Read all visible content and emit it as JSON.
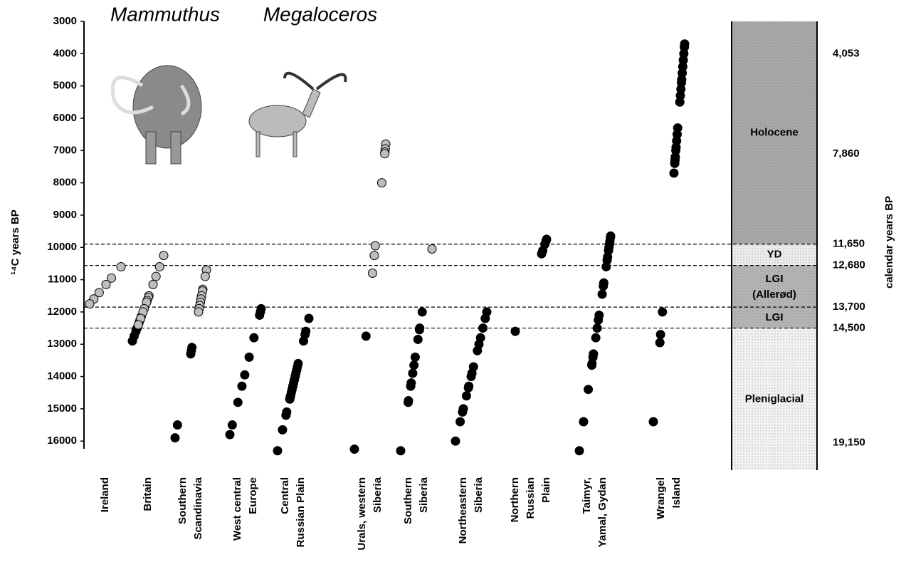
{
  "chart_data": {
    "type": "scatter",
    "y_label": "¹⁴C years BP",
    "y2_label": "calendar years BP",
    "ylim": [
      3000,
      16900
    ],
    "yticks": [
      3000,
      4000,
      5000,
      6000,
      7000,
      8000,
      9000,
      10000,
      11000,
      12000,
      13000,
      14000,
      15000,
      16000
    ],
    "y2lim": [
      3000,
      16900
    ],
    "y2ticks": [
      {
        "value": 4000,
        "label": "4,053"
      },
      {
        "value": 7100,
        "label": "7,860"
      },
      {
        "value": 9900,
        "label": "11,650"
      },
      {
        "value": 10560,
        "label": "12,680"
      },
      {
        "value": 11850,
        "label": "13,700"
      },
      {
        "value": 12500,
        "label": "14,500"
      },
      {
        "value": 16050,
        "label": "19,150"
      }
    ],
    "zone_bounds": [
      9900,
      10560,
      11850,
      12500
    ],
    "zones": [
      {
        "name": "Holocene",
        "color": "#a8a8a8"
      },
      {
        "name": "YD",
        "color": "#ececec"
      },
      {
        "name": "LGI (Allerød)",
        "color": "#b4b4b4"
      },
      {
        "name": "LGI",
        "color": "#b4b4b4"
      },
      {
        "name": "Pleniglacial",
        "color": "#f2f2f2"
      }
    ],
    "categories": [
      [
        "Ireland"
      ],
      [
        "Britain"
      ],
      [
        "Southern",
        "Scandinavia"
      ],
      [
        "West central",
        "Europe"
      ],
      [
        "Central",
        "Russian Plain"
      ],
      [
        "Urals, western",
        "Siberia"
      ],
      [
        "Southern",
        "Siberia"
      ],
      [
        "Northeastern",
        "Siberia"
      ],
      [
        "Northern",
        "Russian",
        "Plain"
      ],
      [
        "Taimyr,",
        "Yamal, Gydan"
      ],
      [
        "Wrangel",
        "Island"
      ]
    ],
    "series": [
      {
        "name": "Mammuthus",
        "color": "#000000",
        "values": [
          [],
          [
            12150,
            12250,
            12350,
            12500,
            12600,
            12750,
            12900
          ],
          [
            13100,
            13200,
            13300,
            15500,
            15900
          ],
          [
            11900,
            12000,
            12100,
            12800,
            13400,
            13950,
            14300,
            14800,
            15500,
            15800
          ],
          [
            12200,
            12600,
            12700,
            12900,
            13600,
            13700,
            13800,
            13900,
            14000,
            14100,
            14200,
            14300,
            14400,
            14500,
            14600,
            14650,
            14700,
            15100,
            15200,
            15650,
            16300
          ],
          [
            12750,
            16250
          ],
          [
            12000,
            12500,
            12550,
            12850,
            13400,
            13650,
            13900,
            14200,
            14300,
            14750,
            14800,
            16300
          ],
          [
            12000,
            12200,
            12500,
            12800,
            13000,
            13200,
            13700,
            13900,
            14000,
            14300,
            14350,
            14600,
            15000,
            15100,
            15400,
            16000
          ],
          [
            9750,
            9800,
            9900,
            10100,
            10200,
            12600
          ],
          [
            9650,
            9700,
            9800,
            9900,
            10000,
            10100,
            10300,
            10400,
            10600,
            11100,
            11200,
            11450,
            12100,
            12250,
            12500,
            12800,
            13300,
            13400,
            13600,
            13650,
            14400,
            15400,
            16300
          ],
          [
            3700,
            3800,
            4000,
            4200,
            4400,
            4600,
            4800,
            4900,
            5100,
            5300,
            5500,
            6300,
            6500,
            6700,
            6900,
            7000,
            7200,
            7300,
            7400,
            7700,
            12000,
            12700,
            12950,
            15400
          ]
        ]
      },
      {
        "name": "Megaloceros",
        "color": "#bdbdbd",
        "values": [
          [
            10600,
            10950,
            11150,
            11400,
            11600,
            11750
          ],
          [
            10250,
            10600,
            10900,
            11150,
            11500,
            11550,
            11650,
            11700,
            11900,
            12000,
            12200,
            12400
          ],
          [
            10700,
            10900,
            11300,
            11350,
            11500,
            11600,
            11700,
            11800,
            11900,
            12000
          ],
          [],
          [],
          [
            6800,
            6950,
            7050,
            7100,
            8000,
            9950,
            10250,
            10800
          ],
          [
            10050
          ],
          [],
          [],
          [],
          []
        ]
      }
    ]
  }
}
